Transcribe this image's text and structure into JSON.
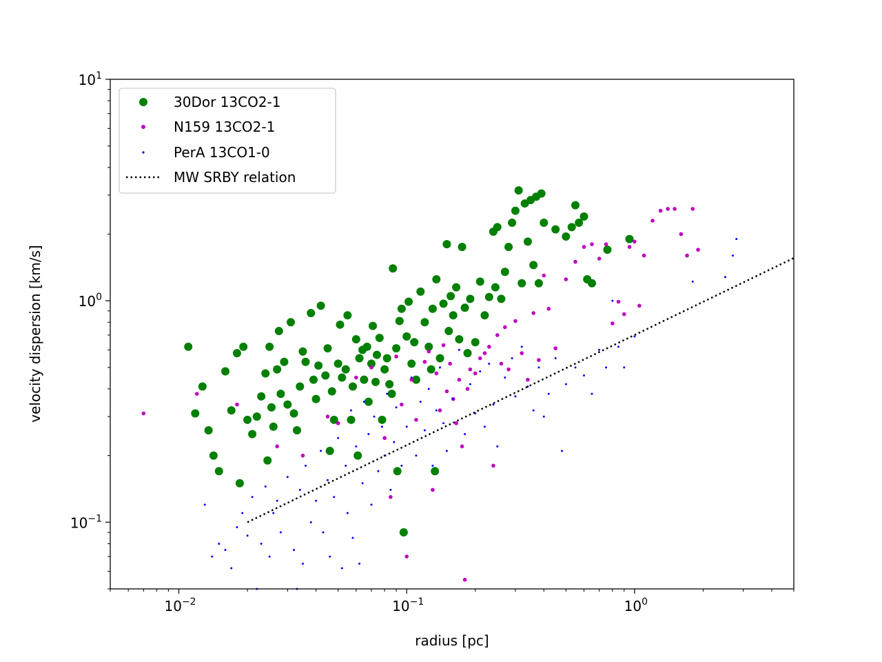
{
  "chart_data": {
    "type": "scatter",
    "title": "",
    "xlabel": "radius [pc]",
    "ylabel": "velocity dispersion [km/s]",
    "xscale": "log",
    "yscale": "log",
    "xlim": [
      0.005,
      5
    ],
    "ylim": [
      0.05,
      10
    ],
    "x_ticks": [
      {
        "value": 0.01,
        "base": "10",
        "exp": "−2"
      },
      {
        "value": 0.1,
        "base": "10",
        "exp": "−1"
      },
      {
        "value": 1,
        "base": "10",
        "exp": "0"
      }
    ],
    "y_ticks": [
      {
        "value": 0.1,
        "base": "10",
        "exp": "−1"
      },
      {
        "value": 1,
        "base": "10",
        "exp": "0"
      },
      {
        "value": 10,
        "base": "10",
        "exp": "1"
      }
    ],
    "grid": false,
    "legend": {
      "placement": "top-left",
      "entries": [
        "30Dor 13CO2-1",
        "N159 13CO2-1",
        "PerA 13CO1-0",
        "MW SRBY relation"
      ]
    },
    "series": [
      {
        "name": "30Dor 13CO2-1",
        "color": "#008000",
        "marker": "large-dot",
        "points": [
          [
            0.011,
            0.62
          ],
          [
            0.0118,
            0.31
          ],
          [
            0.0127,
            0.41
          ],
          [
            0.0135,
            0.26
          ],
          [
            0.0142,
            0.2
          ],
          [
            0.015,
            0.17
          ],
          [
            0.016,
            0.48
          ],
          [
            0.017,
            0.32
          ],
          [
            0.018,
            0.58
          ],
          [
            0.0185,
            0.15
          ],
          [
            0.0192,
            0.62
          ],
          [
            0.02,
            0.29
          ],
          [
            0.021,
            0.25
          ],
          [
            0.022,
            0.3
          ],
          [
            0.023,
            0.37
          ],
          [
            0.024,
            0.47
          ],
          [
            0.0245,
            0.19
          ],
          [
            0.025,
            0.62
          ],
          [
            0.0255,
            0.33
          ],
          [
            0.026,
            0.27
          ],
          [
            0.027,
            0.49
          ],
          [
            0.0275,
            0.73
          ],
          [
            0.028,
            0.38
          ],
          [
            0.029,
            0.53
          ],
          [
            0.03,
            0.34
          ],
          [
            0.031,
            0.8
          ],
          [
            0.032,
            0.31
          ],
          [
            0.033,
            0.26
          ],
          [
            0.034,
            0.41
          ],
          [
            0.035,
            0.59
          ],
          [
            0.036,
            0.53
          ],
          [
            0.038,
            0.88
          ],
          [
            0.039,
            0.44
          ],
          [
            0.04,
            0.36
          ],
          [
            0.041,
            0.51
          ],
          [
            0.042,
            0.95
          ],
          [
            0.044,
            0.46
          ],
          [
            0.045,
            0.61
          ],
          [
            0.046,
            0.21
          ],
          [
            0.047,
            0.39
          ],
          [
            0.048,
            0.29
          ],
          [
            0.05,
            0.52
          ],
          [
            0.051,
            0.78
          ],
          [
            0.052,
            0.45
          ],
          [
            0.054,
            0.49
          ],
          [
            0.055,
            0.86
          ],
          [
            0.057,
            0.29
          ],
          [
            0.058,
            0.41
          ],
          [
            0.06,
            0.67
          ],
          [
            0.061,
            0.2
          ],
          [
            0.062,
            0.55
          ],
          [
            0.064,
            0.6
          ],
          [
            0.065,
            0.44
          ],
          [
            0.067,
            0.62
          ],
          [
            0.068,
            0.35
          ],
          [
            0.07,
            0.52
          ],
          [
            0.071,
            0.77
          ],
          [
            0.073,
            0.43
          ],
          [
            0.074,
            0.57
          ],
          [
            0.076,
            0.68
          ],
          [
            0.078,
            0.29
          ],
          [
            0.08,
            0.49
          ],
          [
            0.082,
            0.55
          ],
          [
            0.084,
            0.42
          ],
          [
            0.086,
            0.38
          ],
          [
            0.087,
            1.4
          ],
          [
            0.09,
            0.61
          ],
          [
            0.091,
            0.17
          ],
          [
            0.093,
            0.81
          ],
          [
            0.095,
            0.92
          ],
          [
            0.097,
            0.09
          ],
          [
            0.1,
            0.69
          ],
          [
            0.102,
            0.99
          ],
          [
            0.105,
            0.52
          ],
          [
            0.108,
            0.65
          ],
          [
            0.11,
            0.44
          ],
          [
            0.115,
            1.1
          ],
          [
            0.12,
            0.8
          ],
          [
            0.125,
            0.62
          ],
          [
            0.128,
            0.49
          ],
          [
            0.13,
            0.92
          ],
          [
            0.133,
            0.17
          ],
          [
            0.135,
            1.25
          ],
          [
            0.14,
            0.55
          ],
          [
            0.145,
            0.97
          ],
          [
            0.15,
            1.8
          ],
          [
            0.153,
            0.73
          ],
          [
            0.156,
            1.05
          ],
          [
            0.16,
            0.86
          ],
          [
            0.165,
            1.15
          ],
          [
            0.17,
            0.67
          ],
          [
            0.175,
            1.75
          ],
          [
            0.18,
            0.93
          ],
          [
            0.185,
            0.58
          ],
          [
            0.19,
            1.02
          ],
          [
            0.2,
            0.65
          ],
          [
            0.21,
            1.22
          ],
          [
            0.22,
            0.86
          ],
          [
            0.23,
            1.04
          ],
          [
            0.24,
            2.05
          ],
          [
            0.245,
            1.15
          ],
          [
            0.25,
            2.15
          ],
          [
            0.26,
            1.02
          ],
          [
            0.27,
            1.35
          ],
          [
            0.28,
            1.75
          ],
          [
            0.29,
            2.25
          ],
          [
            0.3,
            2.55
          ],
          [
            0.31,
            3.15
          ],
          [
            0.32,
            1.2
          ],
          [
            0.33,
            2.75
          ],
          [
            0.34,
            1.85
          ],
          [
            0.35,
            2.85
          ],
          [
            0.36,
            1.45
          ],
          [
            0.37,
            2.95
          ],
          [
            0.38,
            1.2
          ],
          [
            0.39,
            3.05
          ],
          [
            0.4,
            2.25
          ],
          [
            0.45,
            2.1
          ],
          [
            0.5,
            1.95
          ],
          [
            0.53,
            2.15
          ],
          [
            0.55,
            2.7
          ],
          [
            0.57,
            2.25
          ],
          [
            0.6,
            2.4
          ],
          [
            0.62,
            1.25
          ],
          [
            0.65,
            1.2
          ],
          [
            0.76,
            1.7
          ],
          [
            0.95,
            1.9
          ]
        ]
      },
      {
        "name": "N159 13CO2-1",
        "color": "#c000c0",
        "marker": "dot",
        "points": [
          [
            0.007,
            0.31
          ],
          [
            0.012,
            0.38
          ],
          [
            0.018,
            0.34
          ],
          [
            0.027,
            0.22
          ],
          [
            0.035,
            0.2
          ],
          [
            0.045,
            0.3
          ],
          [
            0.05,
            0.28
          ],
          [
            0.06,
            0.45
          ],
          [
            0.07,
            0.5
          ],
          [
            0.08,
            0.24
          ],
          [
            0.085,
            0.13
          ],
          [
            0.09,
            0.56
          ],
          [
            0.095,
            0.34
          ],
          [
            0.1,
            0.07
          ],
          [
            0.105,
            0.44
          ],
          [
            0.11,
            0.29
          ],
          [
            0.12,
            0.53
          ],
          [
            0.125,
            0.59
          ],
          [
            0.13,
            0.14
          ],
          [
            0.135,
            0.47
          ],
          [
            0.14,
            0.32
          ],
          [
            0.145,
            0.63
          ],
          [
            0.15,
            0.39
          ],
          [
            0.155,
            0.52
          ],
          [
            0.16,
            0.36
          ],
          [
            0.165,
            0.28
          ],
          [
            0.17,
            0.44
          ],
          [
            0.175,
            0.22
          ],
          [
            0.18,
            0.055
          ],
          [
            0.185,
            0.4
          ],
          [
            0.19,
            0.49
          ],
          [
            0.2,
            0.47
          ],
          [
            0.21,
            0.55
          ],
          [
            0.22,
            0.58
          ],
          [
            0.23,
            0.62
          ],
          [
            0.24,
            0.18
          ],
          [
            0.25,
            0.7
          ],
          [
            0.26,
            0.52
          ],
          [
            0.27,
            0.76
          ],
          [
            0.28,
            0.49
          ],
          [
            0.3,
            0.81
          ],
          [
            0.32,
            0.58
          ],
          [
            0.34,
            0.44
          ],
          [
            0.36,
            0.88
          ],
          [
            0.38,
            0.54
          ],
          [
            0.4,
            1.3
          ],
          [
            0.42,
            0.92
          ],
          [
            0.45,
            0.61
          ],
          [
            0.5,
            1.25
          ],
          [
            0.55,
            1.5
          ],
          [
            0.6,
            1.75
          ],
          [
            0.65,
            1.8
          ],
          [
            0.7,
            1.55
          ],
          [
            0.75,
            1.8
          ],
          [
            0.8,
            0.79
          ],
          [
            0.85,
            0.99
          ],
          [
            0.9,
            0.87
          ],
          [
            0.95,
            1.75
          ],
          [
            1.0,
            1.85
          ],
          [
            1.05,
            0.95
          ],
          [
            1.1,
            1.6
          ],
          [
            1.2,
            2.3
          ],
          [
            1.3,
            2.55
          ],
          [
            1.4,
            2.6
          ],
          [
            1.5,
            2.6
          ],
          [
            1.6,
            2.0
          ],
          [
            1.7,
            1.6
          ],
          [
            1.8,
            2.6
          ],
          [
            1.9,
            1.7
          ]
        ]
      },
      {
        "name": "PerA 13CO1-0",
        "color": "#0000ff",
        "marker": "small-dot",
        "points": [
          [
            0.013,
            0.12
          ],
          [
            0.014,
            0.07
          ],
          [
            0.015,
            0.08
          ],
          [
            0.016,
            0.075
          ],
          [
            0.017,
            0.062
          ],
          [
            0.018,
            0.095
          ],
          [
            0.019,
            0.11
          ],
          [
            0.02,
            0.087
          ],
          [
            0.021,
            0.13
          ],
          [
            0.022,
            0.05
          ],
          [
            0.023,
            0.08
          ],
          [
            0.024,
            0.145
          ],
          [
            0.025,
            0.07
          ],
          [
            0.026,
            0.11
          ],
          [
            0.027,
            0.125
          ],
          [
            0.028,
            0.09
          ],
          [
            0.03,
            0.16
          ],
          [
            0.032,
            0.075
          ],
          [
            0.033,
            0.05
          ],
          [
            0.034,
            0.14
          ],
          [
            0.035,
            0.065
          ],
          [
            0.036,
            0.18
          ],
          [
            0.038,
            0.1
          ],
          [
            0.04,
            0.125
          ],
          [
            0.042,
            0.21
          ],
          [
            0.043,
            0.09
          ],
          [
            0.045,
            0.155
          ],
          [
            0.046,
            0.07
          ],
          [
            0.048,
            0.13
          ],
          [
            0.05,
            0.24
          ],
          [
            0.052,
            0.062
          ],
          [
            0.054,
            0.18
          ],
          [
            0.055,
            0.11
          ],
          [
            0.057,
            0.32
          ],
          [
            0.058,
            0.085
          ],
          [
            0.06,
            0.22
          ],
          [
            0.062,
            0.065
          ],
          [
            0.064,
            0.15
          ],
          [
            0.065,
            0.35
          ],
          [
            0.068,
            0.25
          ],
          [
            0.07,
            0.12
          ],
          [
            0.072,
            0.3
          ],
          [
            0.075,
            0.17
          ],
          [
            0.078,
            0.27
          ],
          [
            0.08,
            0.2
          ],
          [
            0.082,
            0.38
          ],
          [
            0.085,
            0.14
          ],
          [
            0.088,
            0.23
          ],
          [
            0.09,
            0.33
          ],
          [
            0.095,
            0.18
          ],
          [
            0.1,
            0.27
          ],
          [
            0.105,
            0.45
          ],
          [
            0.11,
            0.2
          ],
          [
            0.115,
            0.35
          ],
          [
            0.12,
            0.26
          ],
          [
            0.125,
            0.4
          ],
          [
            0.13,
            0.18
          ],
          [
            0.135,
            0.32
          ],
          [
            0.14,
            0.5
          ],
          [
            0.145,
            0.28
          ],
          [
            0.15,
            0.21
          ],
          [
            0.16,
            0.36
          ],
          [
            0.17,
            0.6
          ],
          [
            0.18,
            0.25
          ],
          [
            0.19,
            0.42
          ],
          [
            0.2,
            0.31
          ],
          [
            0.21,
            0.48
          ],
          [
            0.22,
            0.27
          ],
          [
            0.23,
            0.52
          ],
          [
            0.24,
            0.34
          ],
          [
            0.25,
            0.22
          ],
          [
            0.27,
            0.45
          ],
          [
            0.29,
            0.55
          ],
          [
            0.3,
            0.37
          ],
          [
            0.32,
            0.62
          ],
          [
            0.34,
            0.41
          ],
          [
            0.36,
            0.32
          ],
          [
            0.38,
            0.5
          ],
          [
            0.4,
            0.3
          ],
          [
            0.42,
            0.38
          ],
          [
            0.45,
            0.55
          ],
          [
            0.48,
            0.21
          ],
          [
            0.5,
            0.42
          ],
          [
            0.55,
            0.5
          ],
          [
            0.6,
            0.46
          ],
          [
            0.65,
            0.38
          ],
          [
            0.7,
            0.6
          ],
          [
            0.75,
            0.5
          ],
          [
            0.8,
            1.0
          ],
          [
            0.85,
            0.62
          ],
          [
            0.9,
            0.5
          ],
          [
            1.0,
            0.69
          ],
          [
            1.8,
            1.22
          ],
          [
            2.5,
            1.28
          ],
          [
            2.7,
            1.6
          ],
          [
            2.8,
            1.9
          ]
        ]
      },
      {
        "name": "MW SRBY relation",
        "color": "#000000",
        "marker": "dotted-line",
        "x": [
          0.02,
          5
        ],
        "y": [
          0.1,
          1.56
        ]
      }
    ]
  }
}
